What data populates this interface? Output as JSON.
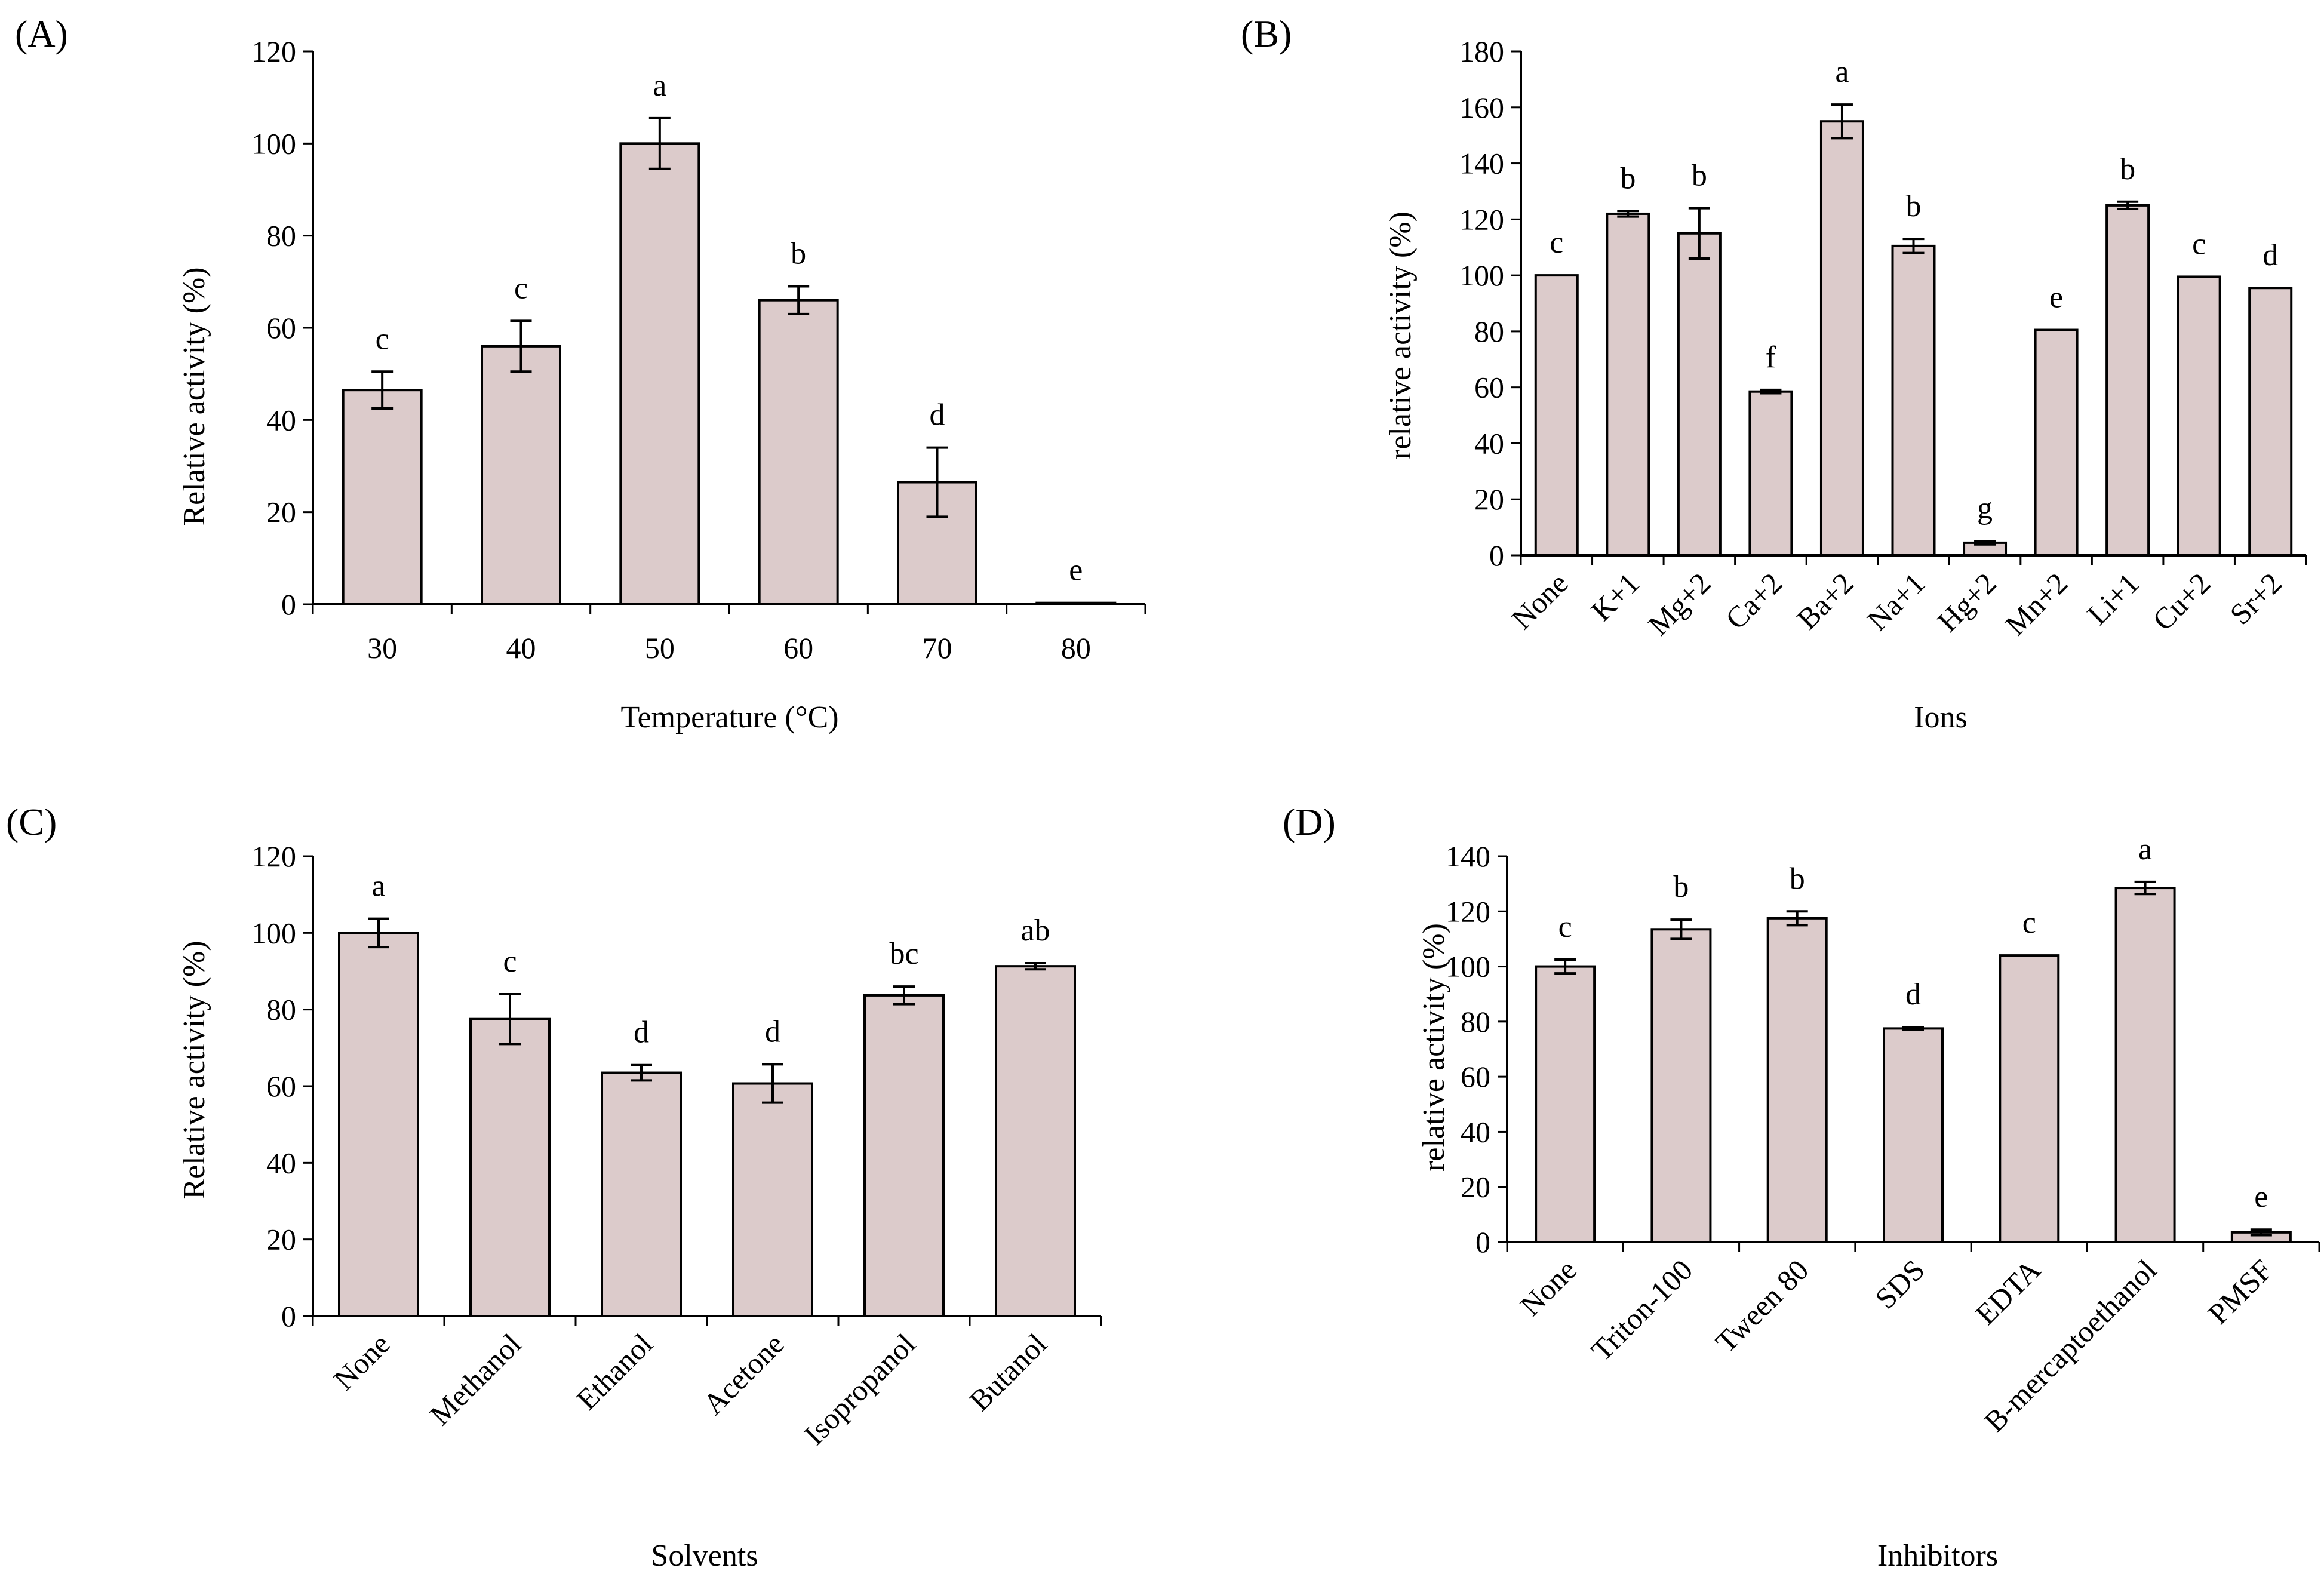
{
  "figure": {
    "background": "#ffffff",
    "bar_fill": "#dccbcb",
    "stroke": "#000000"
  },
  "chart_data": [
    {
      "panel": "(A)",
      "type": "bar",
      "xlabel": "Temperature (°C)",
      "ylabel": "Relative activity (%)",
      "ylim": [
        0,
        120
      ],
      "yticks": [
        0,
        20,
        40,
        60,
        80,
        100,
        120
      ],
      "rotate_categories": false,
      "categories": [
        "30",
        "40",
        "50",
        "60",
        "70",
        "80"
      ],
      "values": [
        46.5,
        56,
        100,
        66,
        26.5,
        0.3
      ],
      "errors": [
        4,
        5.5,
        5.5,
        3,
        7.5,
        0
      ],
      "significance": [
        "c",
        "c",
        "a",
        "b",
        "d",
        "e"
      ]
    },
    {
      "panel": "(B)",
      "type": "bar",
      "xlabel": "Ions",
      "ylabel": "relative activity (%)",
      "ylim": [
        0,
        180
      ],
      "yticks": [
        0,
        20,
        40,
        60,
        80,
        100,
        120,
        140,
        160,
        180
      ],
      "rotate_categories": true,
      "categories": [
        "None",
        "K+1",
        "Mg+2",
        "Ca+2",
        "Ba+2",
        "Na+1",
        "Hg+2",
        "Mn+2",
        "Li+1",
        "Cu+2",
        "Sr+2"
      ],
      "values": [
        100,
        122,
        115,
        58.5,
        155,
        110.5,
        4.5,
        80.5,
        125,
        99.5,
        95.5
      ],
      "errors": [
        0,
        1,
        9,
        0.6,
        6,
        2.5,
        0.6,
        0,
        1.3,
        0,
        0
      ],
      "significance": [
        "c",
        "b",
        "b",
        "f",
        "a",
        "b",
        "g",
        "e",
        "b",
        "c",
        "d"
      ]
    },
    {
      "panel": "(C)",
      "type": "bar",
      "xlabel": "Solvents",
      "ylabel": "Relative activity  (%)",
      "ylim": [
        0,
        120
      ],
      "yticks": [
        0,
        20,
        40,
        60,
        80,
        100,
        120
      ],
      "rotate_categories": true,
      "categories": [
        "None",
        "Methanol",
        "Ethanol",
        "Acetone",
        "Isopropanol",
        "Butanol"
      ],
      "values": [
        100,
        77.5,
        63.5,
        60.7,
        83.7,
        91.3
      ],
      "errors": [
        3.7,
        6.5,
        2,
        5,
        2.3,
        0.8
      ],
      "significance": [
        "a",
        "c",
        "d",
        "d",
        "bc",
        "ab"
      ]
    },
    {
      "panel": "(D)",
      "type": "bar",
      "xlabel": "Inhibitors",
      "ylabel": "relative activity (%)",
      "ylim": [
        0,
        140
      ],
      "yticks": [
        0,
        20,
        40,
        60,
        80,
        100,
        120,
        140
      ],
      "rotate_categories": true,
      "categories": [
        "None",
        "Triton-100",
        "Tween 80",
        "SDS",
        "EDTA",
        "B-mercaptoethanol",
        "PMSF"
      ],
      "values": [
        100,
        113.5,
        117.5,
        77.5,
        104,
        128.5,
        3.5
      ],
      "errors": [
        2.5,
        3.5,
        2.5,
        0.5,
        0,
        2.2,
        1
      ],
      "significance": [
        "c",
        "b",
        "b",
        "d",
        "c",
        "a",
        "e"
      ]
    }
  ]
}
